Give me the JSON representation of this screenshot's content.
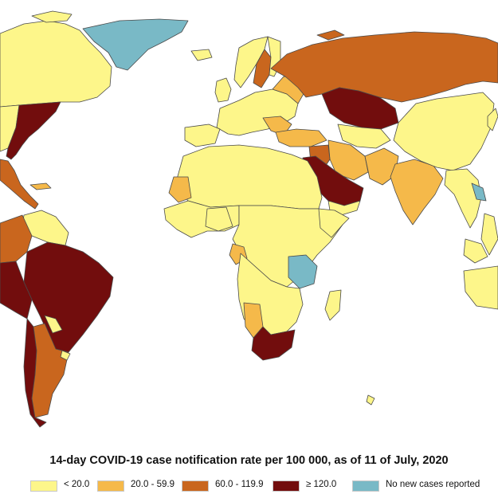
{
  "title": "14-day COVID-19 case notification rate per 100 000, as of 11 of July, 2020",
  "colors": {
    "lt20": "#fdf68a",
    "r20_59": "#f5b94a",
    "r60_119": "#c9661e",
    "ge120": "#720d0d",
    "none": "#79b9c6"
  },
  "legend": [
    {
      "label": "< 20.0",
      "color": "#fdf68a"
    },
    {
      "label": "20.0 - 59.9",
      "color": "#f5b94a"
    },
    {
      "label": "60.0 - 119.9",
      "color": "#c9661e"
    },
    {
      "label": "≥ 120.0",
      "color": "#720d0d"
    },
    {
      "label": "No new cases reported",
      "color": "#79b9c6"
    }
  ]
}
